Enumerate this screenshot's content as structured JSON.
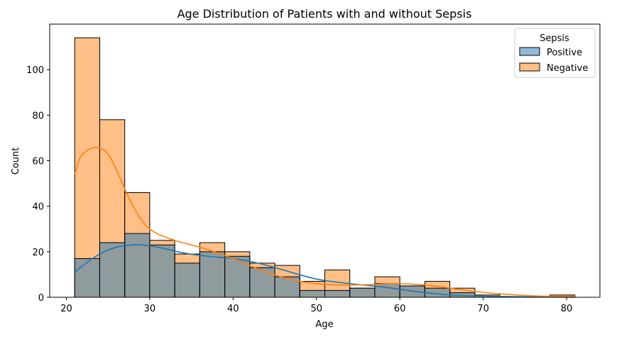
{
  "chart_data": {
    "type": "histogram",
    "title": "Age Distribution of Patients with and without Sepsis",
    "xlabel": "Age",
    "ylabel": "Count",
    "xlim": [
      18,
      84
    ],
    "ylim": [
      0,
      120
    ],
    "xticks": [
      20,
      30,
      40,
      50,
      60,
      70,
      80
    ],
    "yticks": [
      0,
      20,
      40,
      60,
      80,
      100
    ],
    "bin_edges": [
      21,
      24,
      27,
      30,
      33,
      36,
      39,
      42,
      45,
      48,
      51,
      54,
      57,
      60,
      63,
      66,
      69,
      72,
      75,
      78,
      81
    ],
    "series": [
      {
        "name": "Positive",
        "color": "#1f77b4",
        "values": [
          17,
          24,
          28,
          23,
          15,
          20,
          18,
          13,
          9,
          3,
          3,
          4,
          6,
          5,
          4,
          2,
          0,
          0,
          0,
          0
        ]
      },
      {
        "name": "Negative",
        "color": "#ff7f0e",
        "values": [
          114,
          78,
          46,
          25,
          19,
          24,
          20,
          15,
          14,
          7,
          12,
          4,
          9,
          5,
          7,
          4,
          1,
          0,
          0,
          1
        ]
      }
    ],
    "kde": [
      {
        "series": "Positive",
        "x": [
          21,
          22,
          24,
          26,
          28,
          29,
          31,
          34,
          37,
          40,
          43,
          46,
          50,
          54,
          58,
          62,
          66,
          70,
          75,
          81
        ],
        "y": [
          11,
          14,
          19,
          22,
          23,
          23,
          22,
          19.5,
          18,
          17,
          15,
          12,
          8,
          6,
          4.5,
          2.5,
          1,
          0.5,
          0.2,
          0
        ]
      },
      {
        "series": "Negative",
        "x": [
          21,
          21.5,
          22,
          23,
          24,
          25,
          26,
          28,
          30,
          33,
          36,
          40,
          44,
          48,
          52,
          56,
          60,
          64,
          68,
          72,
          77,
          81
        ],
        "y": [
          54,
          60,
          63,
          65.5,
          65.5,
          63,
          56,
          40,
          30,
          25,
          22,
          17,
          11,
          7,
          5.5,
          5.5,
          6,
          5,
          3,
          1.5,
          0.5,
          0.5
        ]
      }
    ],
    "legend": {
      "title": "Sepsis",
      "entries": [
        "Positive",
        "Negative"
      ],
      "placement": "top-right"
    },
    "grid": false
  }
}
